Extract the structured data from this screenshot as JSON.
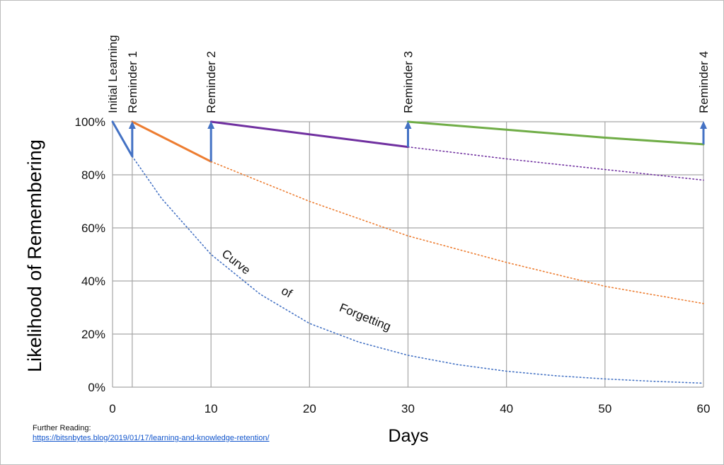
{
  "colors": {
    "initial": "#4472c4",
    "reminder1": "#ed7d31",
    "reminder2": "#7030a0",
    "reminder3": "#70ad47",
    "arrow": "#4472c4",
    "grid": "#a6a6a6"
  },
  "further_reading": {
    "label": "Further Reading:",
    "url": "https://bitsnbytes.blog/2019/01/17/learning-and-knowledge-retention/"
  },
  "chart_data": {
    "type": "line",
    "title": "",
    "xlabel": "Days",
    "ylabel": "Likelihood of Remembering",
    "xlim": [
      0,
      60
    ],
    "ylim": [
      0,
      100
    ],
    "x_ticks": [
      0,
      10,
      20,
      30,
      40,
      50,
      60
    ],
    "y_ticks": [
      0,
      20,
      40,
      60,
      80,
      100
    ],
    "y_tick_labels": [
      "0%",
      "20%",
      "40%",
      "60%",
      "80%",
      "100%"
    ],
    "grid": true,
    "events": [
      {
        "label": "Initial Learning",
        "day": 0
      },
      {
        "label": "Reminder 1",
        "day": 2
      },
      {
        "label": "Reminder 2",
        "day": 10
      },
      {
        "label": "Reminder 3",
        "day": 30
      },
      {
        "label": "Reminder 4",
        "day": 60
      }
    ],
    "series": [
      {
        "style": "solid",
        "color_key": "initial",
        "x": [
          0,
          2
        ],
        "y": [
          100,
          87
        ]
      },
      {
        "style": "dotted",
        "color_key": "initial",
        "x": [
          2,
          5,
          10,
          15,
          20,
          25,
          30,
          35,
          40,
          45,
          50,
          55,
          60
        ],
        "y": [
          87,
          71,
          50,
          35,
          24,
          17,
          12,
          8.5,
          6,
          4.3,
          3.1,
          2.2,
          1.5
        ]
      },
      {
        "style": "solid",
        "color_key": "reminder1",
        "x": [
          2,
          10
        ],
        "y": [
          100,
          85
        ]
      },
      {
        "style": "dotted",
        "color_key": "reminder1",
        "x": [
          10,
          20,
          30,
          40,
          50,
          60
        ],
        "y": [
          85,
          70,
          57,
          47,
          38,
          31.5
        ]
      },
      {
        "style": "solid",
        "color_key": "reminder2",
        "x": [
          10,
          30
        ],
        "y": [
          100,
          90.5
        ]
      },
      {
        "style": "dotted",
        "color_key": "reminder2",
        "x": [
          30,
          40,
          50,
          60
        ],
        "y": [
          90.5,
          86,
          82,
          78
        ]
      },
      {
        "style": "solid",
        "color_key": "reminder3",
        "x": [
          30,
          40,
          50,
          60
        ],
        "y": [
          100,
          97,
          94,
          91.5
        ]
      }
    ],
    "arrows": [
      {
        "x": 2,
        "from": 87,
        "to": 100
      },
      {
        "x": 10,
        "from": 85,
        "to": 100
      },
      {
        "x": 30,
        "from": 90.5,
        "to": 100
      },
      {
        "x": 60,
        "from": 91.5,
        "to": 100
      }
    ],
    "annotations": [
      {
        "text": "Curve",
        "x": 12.3,
        "y": 46,
        "angle": 38
      },
      {
        "text": "of",
        "x": 17.5,
        "y": 34.5,
        "angle": 28
      },
      {
        "text": "Forgetting",
        "x": 25.5,
        "y": 25,
        "angle": 22
      }
    ]
  }
}
